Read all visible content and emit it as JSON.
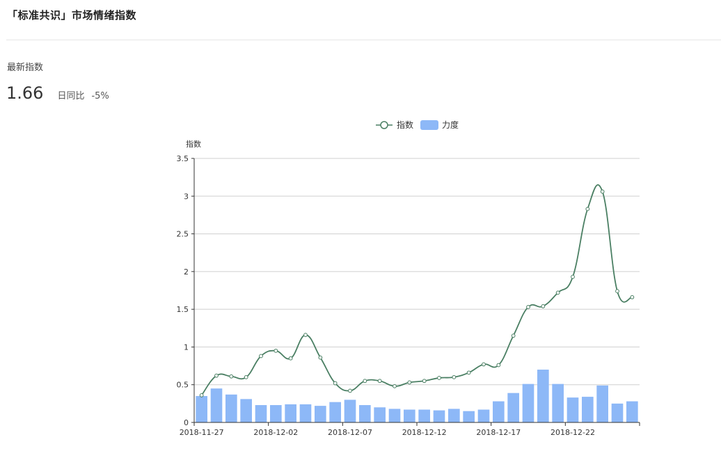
{
  "header": {
    "title": "「标准共识」市场情绪指数"
  },
  "summary": {
    "latest_label": "最新指数",
    "latest_value": "1.66",
    "yoy_label": "日同比",
    "yoy_value": "-5%"
  },
  "chart_data": {
    "type": "line",
    "ylabel": "指数",
    "ylim": [
      0,
      3.5
    ],
    "yticks": [
      "0",
      "0.5",
      "1",
      "1.5",
      "2",
      "2.5",
      "3",
      "3.5"
    ],
    "grid": true,
    "legend_position": "top-center",
    "x_labels": [
      "2018-11-27",
      "2018-12-02",
      "2018-12-07",
      "2018-12-12",
      "2018-12-17",
      "2018-12-22"
    ],
    "x": [
      "2018-11-27",
      "2018-11-28",
      "2018-11-29",
      "2018-11-30",
      "2018-12-01",
      "2018-12-02",
      "2018-12-03",
      "2018-12-04",
      "2018-12-05",
      "2018-12-06",
      "2018-12-07",
      "2018-12-08",
      "2018-12-09",
      "2018-12-10",
      "2018-12-11",
      "2018-12-12",
      "2018-12-13",
      "2018-12-14",
      "2018-12-15",
      "2018-12-16",
      "2018-12-17",
      "2018-12-18",
      "2018-12-19",
      "2018-12-20",
      "2018-12-21",
      "2018-12-22",
      "2018-12-23",
      "2018-12-24",
      "2018-12-25",
      "2018-12-26"
    ],
    "series": [
      {
        "name": "指数",
        "kind": "line",
        "color": "#4a7f63",
        "values": [
          0.36,
          0.62,
          0.61,
          0.6,
          0.88,
          0.95,
          0.85,
          1.16,
          0.86,
          0.52,
          0.42,
          0.55,
          0.55,
          0.48,
          0.53,
          0.55,
          0.59,
          0.6,
          0.66,
          0.77,
          0.76,
          1.15,
          1.53,
          1.54,
          1.72,
          1.93,
          2.83,
          3.06,
          1.74,
          1.66
        ]
      },
      {
        "name": "力度",
        "kind": "bar",
        "color": "#8db8f7",
        "values": [
          0.35,
          0.45,
          0.37,
          0.31,
          0.23,
          0.23,
          0.24,
          0.24,
          0.22,
          0.27,
          0.3,
          0.23,
          0.2,
          0.18,
          0.17,
          0.17,
          0.16,
          0.18,
          0.15,
          0.17,
          0.28,
          0.39,
          0.51,
          0.7,
          0.51,
          0.33,
          0.34,
          0.49,
          0.25,
          0.28
        ]
      }
    ]
  }
}
